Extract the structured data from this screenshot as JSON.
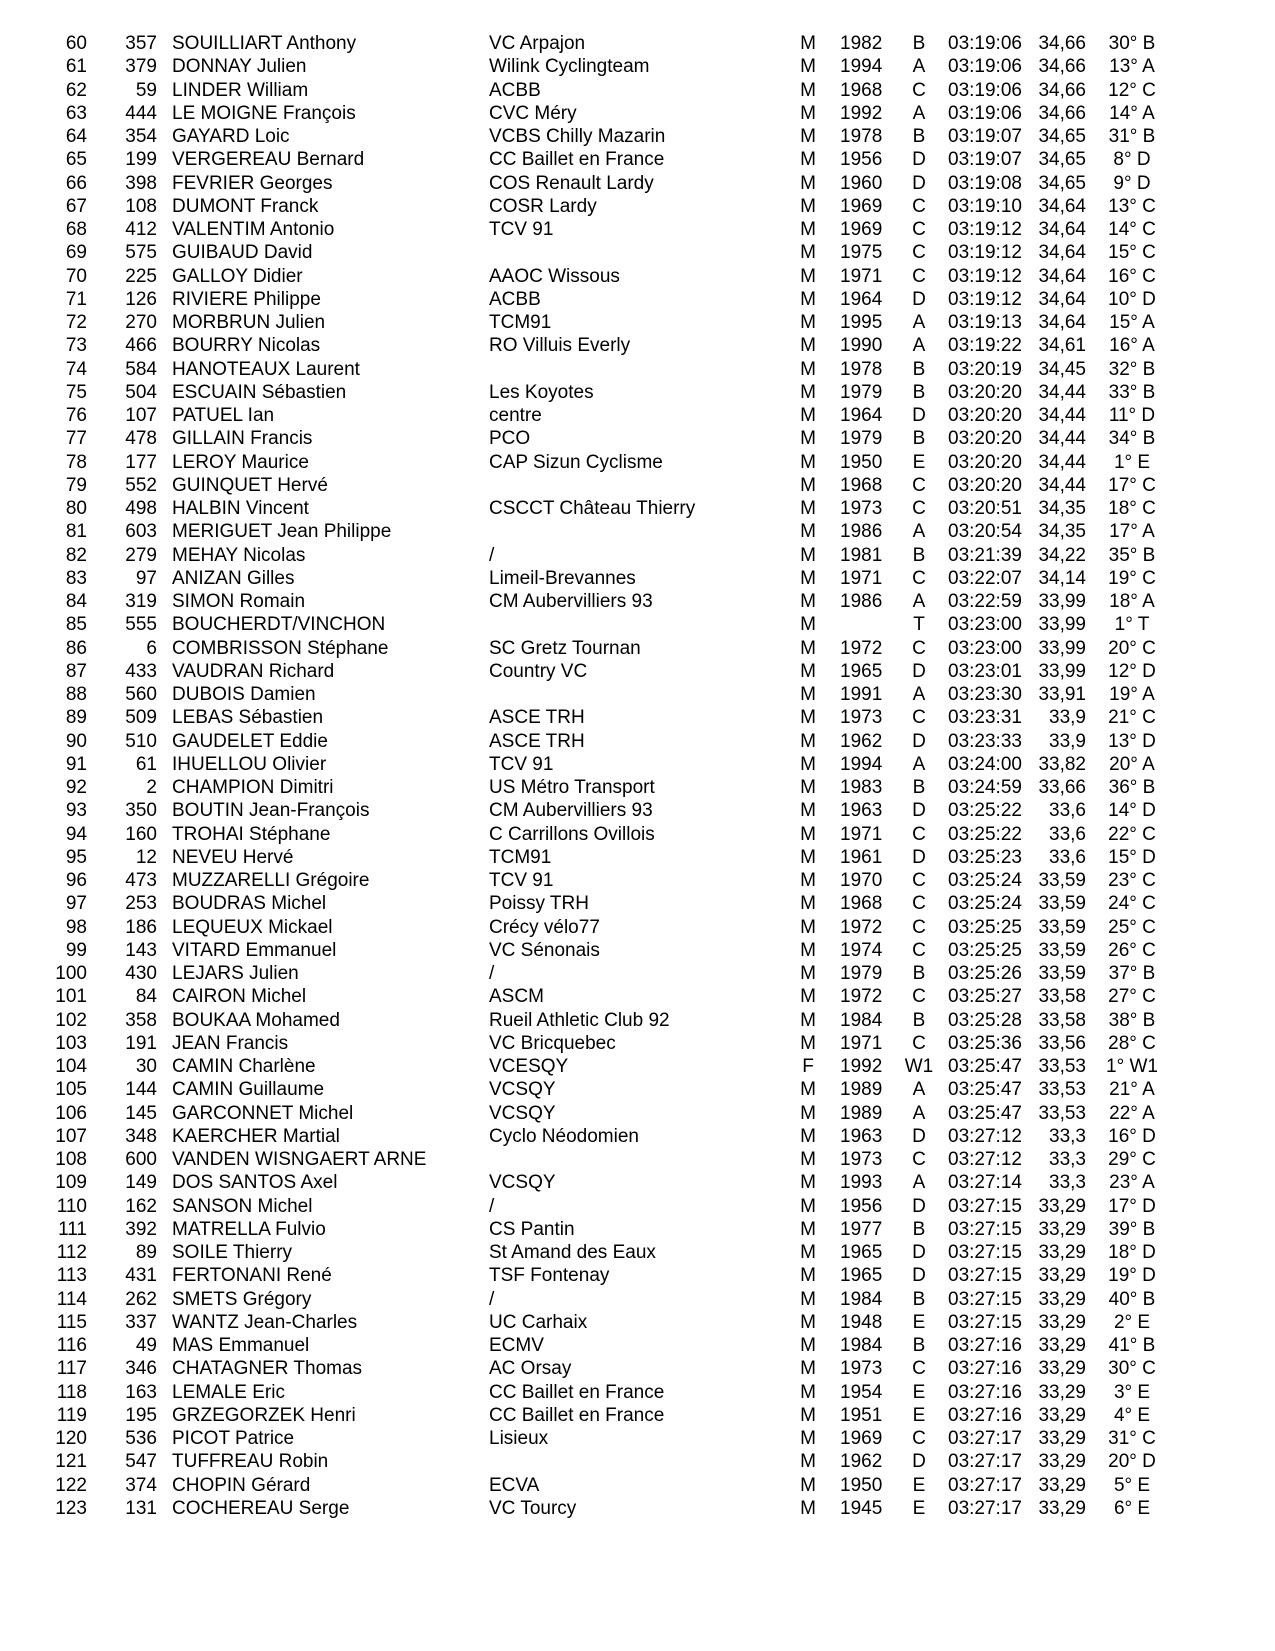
{
  "results": [
    [
      "60",
      "357",
      "SOUILLIART Anthony",
      "VC Arpajon",
      "M",
      "1982",
      "B",
      "03:19:06",
      "34,66",
      "30° B"
    ],
    [
      "61",
      "379",
      "DONNAY Julien",
      "Wilink Cyclingteam",
      "M",
      "1994",
      "A",
      "03:19:06",
      "34,66",
      "13° A"
    ],
    [
      "62",
      "59",
      "LINDER William",
      "ACBB",
      "M",
      "1968",
      "C",
      "03:19:06",
      "34,66",
      "12° C"
    ],
    [
      "63",
      "444",
      "LE MOIGNE François",
      "CVC Méry",
      "M",
      "1992",
      "A",
      "03:19:06",
      "34,66",
      "14° A"
    ],
    [
      "64",
      "354",
      "GAYARD Loic",
      "VCBS Chilly Mazarin",
      "M",
      "1978",
      "B",
      "03:19:07",
      "34,65",
      "31° B"
    ],
    [
      "65",
      "199",
      "VERGEREAU Bernard",
      "CC Baillet en France",
      "M",
      "1956",
      "D",
      "03:19:07",
      "34,65",
      "8° D"
    ],
    [
      "66",
      "398",
      "FEVRIER Georges",
      "COS Renault Lardy",
      "M",
      "1960",
      "D",
      "03:19:08",
      "34,65",
      "9° D"
    ],
    [
      "67",
      "108",
      "DUMONT Franck",
      "COSR Lardy",
      "M",
      "1969",
      "C",
      "03:19:10",
      "34,64",
      "13° C"
    ],
    [
      "68",
      "412",
      "VALENTIM Antonio",
      "TCV 91",
      "M",
      "1969",
      "C",
      "03:19:12",
      "34,64",
      "14° C"
    ],
    [
      "69",
      "575",
      "GUIBAUD David",
      "",
      "M",
      "1975",
      "C",
      "03:19:12",
      "34,64",
      "15° C"
    ],
    [
      "70",
      "225",
      "GALLOY Didier",
      "AAOC Wissous",
      "M",
      "1971",
      "C",
      "03:19:12",
      "34,64",
      "16° C"
    ],
    [
      "71",
      "126",
      "RIVIERE Philippe",
      "ACBB",
      "M",
      "1964",
      "D",
      "03:19:12",
      "34,64",
      "10° D"
    ],
    [
      "72",
      "270",
      "MORBRUN Julien",
      "TCM91",
      "M",
      "1995",
      "A",
      "03:19:13",
      "34,64",
      "15° A"
    ],
    [
      "73",
      "466",
      "BOURRY Nicolas",
      "RO Villuis Everly",
      "M",
      "1990",
      "A",
      "03:19:22",
      "34,61",
      "16° A"
    ],
    [
      "74",
      "584",
      "HANOTEAUX Laurent",
      "",
      "M",
      "1978",
      "B",
      "03:20:19",
      "34,45",
      "32° B"
    ],
    [
      "75",
      "504",
      "ESCUAIN Sébastien",
      "Les Koyotes",
      "M",
      "1979",
      "B",
      "03:20:20",
      "34,44",
      "33° B"
    ],
    [
      "76",
      "107",
      "PATUEL Ian",
      "centre",
      "M",
      "1964",
      "D",
      "03:20:20",
      "34,44",
      "11° D"
    ],
    [
      "77",
      "478",
      "GILLAIN Francis",
      "PCO",
      "M",
      "1979",
      "B",
      "03:20:20",
      "34,44",
      "34° B"
    ],
    [
      "78",
      "177",
      "LEROY Maurice",
      "CAP Sizun Cyclisme",
      "M",
      "1950",
      "E",
      "03:20:20",
      "34,44",
      "1° E"
    ],
    [
      "79",
      "552",
      "GUINQUET Hervé",
      "",
      "M",
      "1968",
      "C",
      "03:20:20",
      "34,44",
      "17° C"
    ],
    [
      "80",
      "498",
      "HALBIN Vincent",
      "CSCCT Château Thierry",
      "M",
      "1973",
      "C",
      "03:20:51",
      "34,35",
      "18° C"
    ],
    [
      "81",
      "603",
      "MERIGUET Jean Philippe",
      "",
      "M",
      "1986",
      "A",
      "03:20:54",
      "34,35",
      "17° A"
    ],
    [
      "82",
      "279",
      "MEHAY Nicolas",
      "/",
      "M",
      "1981",
      "B",
      "03:21:39",
      "34,22",
      "35° B"
    ],
    [
      "83",
      "97",
      "ANIZAN Gilles",
      "Limeil-Brevannes",
      "M",
      "1971",
      "C",
      "03:22:07",
      "34,14",
      "19° C"
    ],
    [
      "84",
      "319",
      "SIMON Romain",
      "CM Aubervilliers 93",
      "M",
      "1986",
      "A",
      "03:22:59",
      "33,99",
      "18° A"
    ],
    [
      "85",
      "555",
      "BOUCHERDT/VINCHON",
      "",
      "M",
      "",
      "T",
      "03:23:00",
      "33,99",
      "1° T"
    ],
    [
      "86",
      "6",
      "COMBRISSON Stéphane",
      "SC Gretz Tournan",
      "M",
      "1972",
      "C",
      "03:23:00",
      "33,99",
      "20° C"
    ],
    [
      "87",
      "433",
      "VAUDRAN Richard",
      "Country VC",
      "M",
      "1965",
      "D",
      "03:23:01",
      "33,99",
      "12° D"
    ],
    [
      "88",
      "560",
      "DUBOIS Damien",
      "",
      "M",
      "1991",
      "A",
      "03:23:30",
      "33,91",
      "19° A"
    ],
    [
      "89",
      "509",
      "LEBAS Sébastien",
      "ASCE TRH",
      "M",
      "1973",
      "C",
      "03:23:31",
      "33,9",
      "21° C"
    ],
    [
      "90",
      "510",
      "GAUDELET Eddie",
      "ASCE TRH",
      "M",
      "1962",
      "D",
      "03:23:33",
      "33,9",
      "13° D"
    ],
    [
      "91",
      "61",
      "IHUELLOU Olivier",
      "TCV 91",
      "M",
      "1994",
      "A",
      "03:24:00",
      "33,82",
      "20° A"
    ],
    [
      "92",
      "2",
      "CHAMPION Dimitri",
      "US Métro Transport",
      "M",
      "1983",
      "B",
      "03:24:59",
      "33,66",
      "36° B"
    ],
    [
      "93",
      "350",
      "BOUTIN Jean-François",
      "CM Aubervilliers 93",
      "M",
      "1963",
      "D",
      "03:25:22",
      "33,6",
      "14° D"
    ],
    [
      "94",
      "160",
      "TROHAI Stéphane",
      "C Carrillons Ovillois",
      "M",
      "1971",
      "C",
      "03:25:22",
      "33,6",
      "22° C"
    ],
    [
      "95",
      "12",
      "NEVEU Hervé",
      "TCM91",
      "M",
      "1961",
      "D",
      "03:25:23",
      "33,6",
      "15° D"
    ],
    [
      "96",
      "473",
      "MUZZARELLI Grégoire",
      "TCV 91",
      "M",
      "1970",
      "C",
      "03:25:24",
      "33,59",
      "23° C"
    ],
    [
      "97",
      "253",
      "BOUDRAS Michel",
      "Poissy TRH",
      "M",
      "1968",
      "C",
      "03:25:24",
      "33,59",
      "24° C"
    ],
    [
      "98",
      "186",
      "LEQUEUX Mickael",
      "Crécy vélo77",
      "M",
      "1972",
      "C",
      "03:25:25",
      "33,59",
      "25° C"
    ],
    [
      "99",
      "143",
      "VITARD Emmanuel",
      "VC Sénonais",
      "M",
      "1974",
      "C",
      "03:25:25",
      "33,59",
      "26° C"
    ],
    [
      "100",
      "430",
      "LEJARS Julien",
      "/",
      "M",
      "1979",
      "B",
      "03:25:26",
      "33,59",
      "37° B"
    ],
    [
      "101",
      "84",
      "CAIRON Michel",
      "ASCM",
      "M",
      "1972",
      "C",
      "03:25:27",
      "33,58",
      "27° C"
    ],
    [
      "102",
      "358",
      "BOUKAA Mohamed",
      "Rueil Athletic Club 92",
      "M",
      "1984",
      "B",
      "03:25:28",
      "33,58",
      "38° B"
    ],
    [
      "103",
      "191",
      "JEAN Francis",
      "VC Bricquebec",
      "M",
      "1971",
      "C",
      "03:25:36",
      "33,56",
      "28° C"
    ],
    [
      "104",
      "30",
      "CAMIN Charlène",
      "VCESQY",
      "F",
      "1992",
      "W1",
      "03:25:47",
      "33,53",
      "1° W1"
    ],
    [
      "105",
      "144",
      "CAMIN Guillaume",
      "VCSQY",
      "M",
      "1989",
      "A",
      "03:25:47",
      "33,53",
      "21° A"
    ],
    [
      "106",
      "145",
      "GARCONNET Michel",
      "VCSQY",
      "M",
      "1989",
      "A",
      "03:25:47",
      "33,53",
      "22° A"
    ],
    [
      "107",
      "348",
      "KAERCHER Martial",
      "Cyclo Néodomien",
      "M",
      "1963",
      "D",
      "03:27:12",
      "33,3",
      "16° D"
    ],
    [
      "108",
      "600",
      "VANDEN WISNGAERT ARNE",
      "",
      "M",
      "1973",
      "C",
      "03:27:12",
      "33,3",
      "29° C"
    ],
    [
      "109",
      "149",
      "DOS SANTOS Axel",
      "VCSQY",
      "M",
      "1993",
      "A",
      "03:27:14",
      "33,3",
      "23° A"
    ],
    [
      "110",
      "162",
      "SANSON Michel",
      "/",
      "M",
      "1956",
      "D",
      "03:27:15",
      "33,29",
      "17° D"
    ],
    [
      "111",
      "392",
      "MATRELLA Fulvio",
      "CS Pantin",
      "M",
      "1977",
      "B",
      "03:27:15",
      "33,29",
      "39° B"
    ],
    [
      "112",
      "89",
      "SOILE Thierry",
      "St Amand des Eaux",
      "M",
      "1965",
      "D",
      "03:27:15",
      "33,29",
      "18° D"
    ],
    [
      "113",
      "431",
      "FERTONANI René",
      "TSF Fontenay",
      "M",
      "1965",
      "D",
      "03:27:15",
      "33,29",
      "19° D"
    ],
    [
      "114",
      "262",
      "SMETS Grégory",
      "/",
      "M",
      "1984",
      "B",
      "03:27:15",
      "33,29",
      "40° B"
    ],
    [
      "115",
      "337",
      "WANTZ Jean-Charles",
      "UC Carhaix",
      "M",
      "1948",
      "E",
      "03:27:15",
      "33,29",
      "2° E"
    ],
    [
      "116",
      "49",
      "MAS Emmanuel",
      "ECMV",
      "M",
      "1984",
      "B",
      "03:27:16",
      "33,29",
      "41° B"
    ],
    [
      "117",
      "346",
      "CHATAGNER Thomas",
      "AC Orsay",
      "M",
      "1973",
      "C",
      "03:27:16",
      "33,29",
      "30° C"
    ],
    [
      "118",
      "163",
      "LEMALE Eric",
      "CC Baillet en France",
      "M",
      "1954",
      "E",
      "03:27:16",
      "33,29",
      "3° E"
    ],
    [
      "119",
      "195",
      "GRZEGORZEK Henri",
      "CC Baillet en France",
      "M",
      "1951",
      "E",
      "03:27:16",
      "33,29",
      "4° E"
    ],
    [
      "120",
      "536",
      "PICOT Patrice",
      "Lisieux",
      "M",
      "1969",
      "C",
      "03:27:17",
      "33,29",
      "31° C"
    ],
    [
      "121",
      "547",
      "TUFFREAU Robin",
      "",
      "M",
      "1962",
      "D",
      "03:27:17",
      "33,29",
      "20° D"
    ],
    [
      "122",
      "374",
      "CHOPIN Gérard",
      "ECVA",
      "M",
      "1950",
      "E",
      "03:27:17",
      "33,29",
      "5° E"
    ],
    [
      "123",
      "131",
      "COCHEREAU Serge",
      "VC Tourcy",
      "M",
      "1945",
      "E",
      "03:27:17",
      "33,29",
      "6° E"
    ]
  ]
}
